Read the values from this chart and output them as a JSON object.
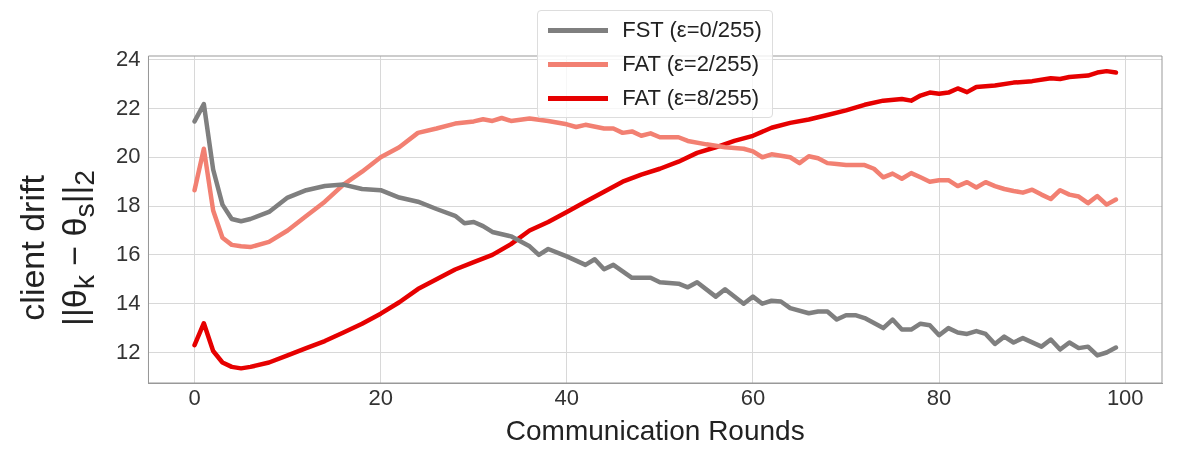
{
  "chart_data": {
    "type": "line",
    "xlabel": "Communication Rounds",
    "ylabel": "client drift\n||θ$_{k}$ − θ$_{s}$||$_{2}$",
    "xlim": [
      -4.95,
      103.95
    ],
    "ylim": [
      10.75,
      24.15
    ],
    "xticks": [
      0,
      20,
      40,
      60,
      80,
      100
    ],
    "yticks": [
      12,
      14,
      16,
      18,
      20,
      22,
      24
    ],
    "grid": true,
    "legend": "top",
    "marker": "none",
    "line_style": "solid",
    "series": [
      {
        "name": "FST (ε=0/255)",
        "color": "#7f7f7f",
        "x": [
          0,
          1,
          2,
          3,
          4,
          5,
          6,
          8,
          10,
          12,
          14,
          16,
          18,
          20,
          22,
          24,
          26,
          28,
          29,
          30,
          31,
          32,
          34,
          36,
          37,
          38,
          40,
          42,
          43,
          44,
          45,
          47,
          49,
          50,
          52,
          53,
          54,
          56,
          57,
          59,
          60,
          61,
          62,
          63,
          64,
          66,
          67,
          68,
          69,
          70,
          71,
          72,
          74,
          75,
          76,
          77,
          78,
          79,
          80,
          81,
          82,
          83,
          84,
          85,
          86,
          87,
          88,
          89,
          91,
          92,
          93,
          94,
          95,
          96,
          97,
          98,
          99
        ],
        "values": [
          21.47,
          22.18,
          19.5,
          18.06,
          17.47,
          17.38,
          17.47,
          17.76,
          18.35,
          18.65,
          18.82,
          18.88,
          18.7,
          18.65,
          18.35,
          18.18,
          17.88,
          17.6,
          17.3,
          17.35,
          17.18,
          16.94,
          16.76,
          16.35,
          16.0,
          16.24,
          15.94,
          15.59,
          15.82,
          15.41,
          15.59,
          15.06,
          15.06,
          14.88,
          14.82,
          14.67,
          14.88,
          14.29,
          14.59,
          14.0,
          14.29,
          14.0,
          14.12,
          14.09,
          13.82,
          13.61,
          13.68,
          13.68,
          13.35,
          13.53,
          13.53,
          13.41,
          13.0,
          13.35,
          12.94,
          12.94,
          13.18,
          13.12,
          12.71,
          13.0,
          12.82,
          12.76,
          12.88,
          12.76,
          12.35,
          12.65,
          12.41,
          12.59,
          12.24,
          12.53,
          12.12,
          12.41,
          12.18,
          12.24,
          11.88,
          12.0,
          12.2
        ]
      },
      {
        "name": "FAT (ε=2/255)",
        "color": "#f28072",
        "x": [
          0,
          1,
          2,
          3,
          4,
          5,
          6,
          8,
          10,
          12,
          14,
          16,
          18,
          20,
          22,
          24,
          26,
          28,
          30,
          31,
          32,
          33,
          34,
          36,
          38,
          40,
          41,
          42,
          44,
          45,
          46,
          47,
          48,
          49,
          50,
          52,
          53,
          55,
          57,
          59,
          60,
          61,
          62,
          64,
          65,
          66,
          67,
          68,
          69,
          70,
          72,
          73,
          74,
          75,
          76,
          77,
          78,
          79,
          80,
          81,
          82,
          83,
          84,
          85,
          86,
          87,
          88,
          89,
          90,
          91,
          92,
          93,
          94,
          95,
          96,
          97,
          98,
          99
        ],
        "values": [
          18.65,
          20.35,
          17.82,
          16.7,
          16.41,
          16.35,
          16.32,
          16.53,
          17.0,
          17.59,
          18.18,
          18.88,
          19.41,
          20.0,
          20.41,
          21.0,
          21.18,
          21.38,
          21.47,
          21.56,
          21.49,
          21.61,
          21.49,
          21.59,
          21.49,
          21.35,
          21.24,
          21.33,
          21.18,
          21.18,
          21.0,
          21.06,
          20.88,
          20.98,
          20.82,
          20.82,
          20.67,
          20.53,
          20.41,
          20.35,
          20.24,
          20.0,
          20.12,
          20.0,
          19.76,
          20.04,
          19.96,
          19.76,
          19.72,
          19.68,
          19.68,
          19.53,
          19.18,
          19.33,
          19.12,
          19.35,
          19.18,
          19.0,
          19.06,
          19.06,
          18.82,
          18.98,
          18.76,
          18.98,
          18.82,
          18.7,
          18.62,
          18.55,
          18.67,
          18.47,
          18.29,
          18.65,
          18.47,
          18.39,
          18.12,
          18.41,
          18.06,
          18.27
        ]
      },
      {
        "name": "FAT (ε=8/255)",
        "color": "#e60000",
        "x": [
          0,
          1,
          2,
          3,
          4,
          5,
          6,
          8,
          10,
          12,
          14,
          16,
          18,
          20,
          22,
          24,
          26,
          28,
          30,
          32,
          34,
          36,
          38,
          40,
          42,
          44,
          46,
          48,
          50,
          52,
          54,
          56,
          58,
          60,
          62,
          64,
          66,
          68,
          70,
          72,
          74,
          76,
          77,
          78,
          79,
          80,
          81,
          82,
          83,
          84,
          86,
          88,
          90,
          92,
          93,
          94,
          96,
          97,
          98,
          99
        ],
        "values": [
          12.3,
          13.2,
          12.06,
          11.59,
          11.41,
          11.35,
          11.41,
          11.59,
          11.88,
          12.18,
          12.47,
          12.82,
          13.18,
          13.59,
          14.06,
          14.6,
          15.0,
          15.4,
          15.7,
          16.0,
          16.44,
          17.0,
          17.35,
          17.76,
          18.18,
          18.59,
          19.0,
          19.29,
          19.53,
          19.82,
          20.18,
          20.41,
          20.67,
          20.88,
          21.21,
          21.41,
          21.55,
          21.73,
          21.92,
          22.15,
          22.32,
          22.39,
          22.32,
          22.53,
          22.65,
          22.6,
          22.65,
          22.82,
          22.67,
          22.88,
          22.94,
          23.06,
          23.12,
          23.24,
          23.21,
          23.29,
          23.35,
          23.47,
          23.53,
          23.47
        ]
      }
    ]
  }
}
